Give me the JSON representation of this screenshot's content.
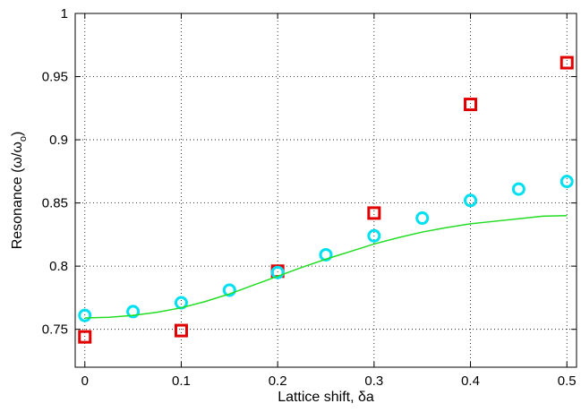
{
  "chart_data": {
    "type": "scatter",
    "xlabel": "Lattice shift, δa",
    "ylabel": "Resonance (ω/ω",
    "ylabel_sub": "o",
    "ylabel_end": ")",
    "xlim": [
      -0.01,
      0.51
    ],
    "ylim": [
      0.72,
      1.0
    ],
    "x_ticks": [
      0,
      0.1,
      0.2,
      0.3,
      0.4,
      0.5
    ],
    "x_tick_labels": [
      "0",
      "0.1",
      "0.2",
      "0.3",
      "0.4",
      "0.5"
    ],
    "y_ticks": [
      0.75,
      0.8,
      0.85,
      0.9,
      0.95,
      1.0
    ],
    "y_tick_labels": [
      "0.75",
      "0.8",
      "0.85",
      "0.9",
      "0.95",
      "1"
    ],
    "grid": true,
    "series": [
      {
        "marker": "square",
        "color": "#e00000",
        "points": [
          [
            0,
            0.744
          ],
          [
            0.1,
            0.749
          ],
          [
            0.2,
            0.796
          ],
          [
            0.3,
            0.842
          ],
          [
            0.4,
            0.928
          ],
          [
            0.5,
            0.961
          ]
        ]
      },
      {
        "marker": "circle",
        "color": "#00e0f0",
        "points": [
          [
            0,
            0.761
          ],
          [
            0.05,
            0.764
          ],
          [
            0.1,
            0.771
          ],
          [
            0.15,
            0.781
          ],
          [
            0.2,
            0.795
          ],
          [
            0.25,
            0.809
          ],
          [
            0.3,
            0.824
          ],
          [
            0.35,
            0.838
          ],
          [
            0.4,
            0.852
          ],
          [
            0.45,
            0.861
          ],
          [
            0.5,
            0.867
          ]
        ]
      },
      {
        "marker": "line",
        "color": "#22dd22",
        "points": [
          [
            0,
            0.759
          ],
          [
            0.025,
            0.7595
          ],
          [
            0.05,
            0.761
          ],
          [
            0.075,
            0.7635
          ],
          [
            0.1,
            0.767
          ],
          [
            0.125,
            0.772
          ],
          [
            0.15,
            0.778
          ],
          [
            0.175,
            0.785
          ],
          [
            0.2,
            0.792
          ],
          [
            0.225,
            0.799
          ],
          [
            0.25,
            0.8055
          ],
          [
            0.275,
            0.8115
          ],
          [
            0.3,
            0.8175
          ],
          [
            0.325,
            0.8225
          ],
          [
            0.35,
            0.827
          ],
          [
            0.375,
            0.8305
          ],
          [
            0.4,
            0.8335
          ],
          [
            0.425,
            0.8355
          ],
          [
            0.45,
            0.8375
          ],
          [
            0.475,
            0.8395
          ],
          [
            0.5,
            0.84
          ]
        ]
      }
    ]
  }
}
